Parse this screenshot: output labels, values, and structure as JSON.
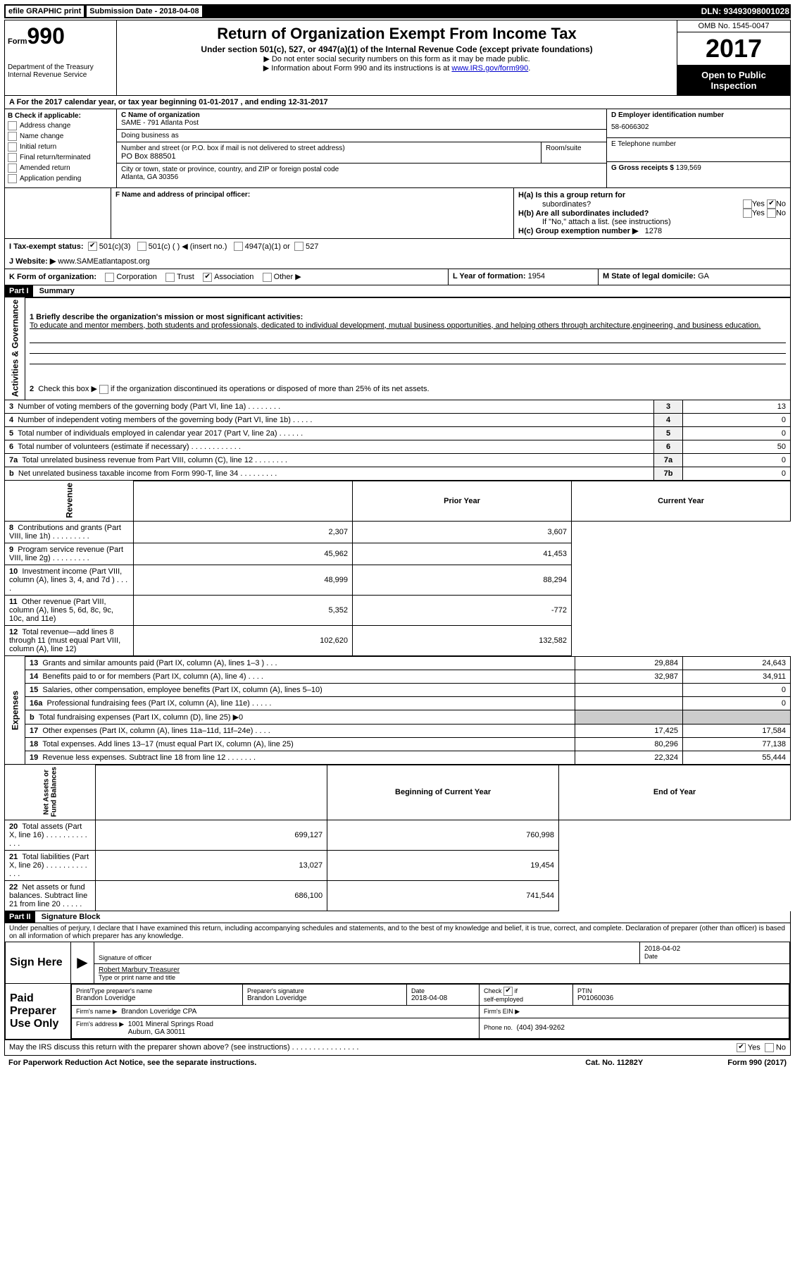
{
  "top": {
    "efile": "efile GRAPHIC print",
    "sub": "Submission Date - 2018-04-08",
    "dln": "DLN: 93493098001028"
  },
  "header": {
    "form": "Form",
    "num": "990",
    "dept": "Department of the Treasury\nInternal Revenue Service",
    "title": "Return of Organization Exempt From Income Tax",
    "subtitle": "Under section 501(c), 527, or 4947(a)(1) of the Internal Revenue Code (except private foundations)",
    "note1": "▶ Do not enter social security numbers on this form as it may be made public.",
    "note2_pre": "▶ Information about Form 990 and its instructions is at ",
    "note2_link": "www.IRS.gov/form990",
    "omb": "OMB No. 1545-0047",
    "year": "2017",
    "open": "Open to Public\nInspection"
  },
  "a": "A  For the 2017 calendar year, or tax year beginning 01-01-2017   , and ending 12-31-2017",
  "b": {
    "label": "B Check if applicable:",
    "items": [
      "Address change",
      "Name change",
      "Initial return",
      "Final return/terminated",
      "Amended return",
      "Application pending"
    ]
  },
  "c": {
    "name_label": "C Name of organization",
    "name": "SAME - 791 Atlanta Post",
    "dba_label": "Doing business as",
    "addr_label": "Number and street (or P.O. box if mail is not delivered to street address)",
    "room_label": "Room/suite",
    "addr": "PO Box 888501",
    "city_label": "City or town, state or province, country, and ZIP or foreign postal code",
    "city": "Atlanta, GA  30356"
  },
  "d": {
    "ein_label": "D Employer identification number",
    "ein": "58-6066302",
    "phone_label": "E Telephone number",
    "gross_label": "G Gross receipts $",
    "gross": "139,569"
  },
  "f": {
    "label": "F Name and address of principal officer:"
  },
  "h": {
    "a_label": "H(a)  Is this a group return for",
    "a_sub": "subordinates?",
    "b_label": "H(b)  Are all subordinates included?",
    "b_note": "If \"No,\" attach a list. (see instructions)",
    "c_label": "H(c)  Group exemption number ▶",
    "c_val": "1278"
  },
  "i": {
    "label": "I  Tax-exempt status:",
    "opts": [
      "501(c)(3)",
      "501(c) (  ) ◀ (insert no.)",
      "4947(a)(1) or",
      "527"
    ]
  },
  "j": {
    "label": "J  Website: ▶",
    "val": "www.SAMEatlantapost.org"
  },
  "k": {
    "label": "K Form of organization:",
    "opts": [
      "Corporation",
      "Trust",
      "Association",
      "Other ▶"
    ],
    "l_label": "L Year of formation:",
    "l_val": "1954",
    "m_label": "M State of legal domicile:",
    "m_val": "GA"
  },
  "part1": {
    "header": "Part I",
    "title": "Summary",
    "q1": "1 Briefly describe the organization's mission or most significant activities:",
    "mission": "To educate and mentor members, both students and professionals, dedicated to individual development, mutual business opportunities, and helping others through architecture,engineering, and business education.",
    "q2": "2   Check this box ▶       if the organization discontinued its operations or disposed of more than 25% of its net assets."
  },
  "governance": {
    "label": "Activities & Governance",
    "rows": [
      {
        "n": "3",
        "desc": "Number of voting members of the governing body (Part VI, line 1a)  .   .   .   .   .   .   .   .",
        "box": "3",
        "val": "13"
      },
      {
        "n": "4",
        "desc": "Number of independent voting members of the governing body (Part VI, line 1b)  .   .   .   .   .",
        "box": "4",
        "val": "0"
      },
      {
        "n": "5",
        "desc": "Total number of individuals employed in calendar year 2017 (Part V, line 2a)  .   .   .   .   .   .",
        "box": "5",
        "val": "0"
      },
      {
        "n": "6",
        "desc": "Total number of volunteers (estimate if necessary)  .   .   .   .   .   .   .   .   .   .   .   .",
        "box": "6",
        "val": "50"
      },
      {
        "n": "7a",
        "desc": "Total unrelated business revenue from Part VIII, column (C), line 12  .   .   .   .   .   .   .   .",
        "box": "7a",
        "val": "0"
      },
      {
        "n": "b",
        "desc": "Net unrelated business taxable income from Form 990-T, line 34  .   .   .   .   .   .   .   .   .",
        "box": "7b",
        "val": "0"
      }
    ]
  },
  "two_col_header": {
    "prior": "Prior Year",
    "current": "Current Year"
  },
  "revenue": {
    "label": "Revenue",
    "rows": [
      {
        "n": "8",
        "desc": "Contributions and grants (Part VIII, line 1h)  .   .   .   .   .   .   .   .   .",
        "p": "2,307",
        "c": "3,607"
      },
      {
        "n": "9",
        "desc": "Program service revenue (Part VIII, line 2g)  .   .   .   .   .   .   .   .   .",
        "p": "45,962",
        "c": "41,453"
      },
      {
        "n": "10",
        "desc": "Investment income (Part VIII, column (A), lines 3, 4, and 7d )  .   .   .   .",
        "p": "48,999",
        "c": "88,294"
      },
      {
        "n": "11",
        "desc": "Other revenue (Part VIII, column (A), lines 5, 6d, 8c, 9c, 10c, and 11e)",
        "p": "5,352",
        "c": "-772"
      },
      {
        "n": "12",
        "desc": "Total revenue—add lines 8 through 11 (must equal Part VIII, column (A), line 12)",
        "p": "102,620",
        "c": "132,582"
      }
    ]
  },
  "expenses": {
    "label": "Expenses",
    "rows": [
      {
        "n": "13",
        "desc": "Grants and similar amounts paid (Part IX, column (A), lines 1–3 )  .   .   .",
        "p": "29,884",
        "c": "24,643"
      },
      {
        "n": "14",
        "desc": "Benefits paid to or for members (Part IX, column (A), line 4)  .   .   .   .",
        "p": "32,987",
        "c": "34,911"
      },
      {
        "n": "15",
        "desc": "Salaries, other compensation, employee benefits (Part IX, column (A), lines 5–10)",
        "p": "",
        "c": "0"
      },
      {
        "n": "16a",
        "desc": "Professional fundraising fees (Part IX, column (A), line 11e)  .   .   .   .   .",
        "p": "",
        "c": "0"
      },
      {
        "n": "b",
        "desc": "Total fundraising expenses (Part IX, column (D), line 25) ▶0",
        "p": "SHADED",
        "c": "SHADED"
      },
      {
        "n": "17",
        "desc": "Other expenses (Part IX, column (A), lines 11a–11d, 11f–24e)  .   .   .   .",
        "p": "17,425",
        "c": "17,584"
      },
      {
        "n": "18",
        "desc": "Total expenses. Add lines 13–17 (must equal Part IX, column (A), line 25)",
        "p": "80,296",
        "c": "77,138"
      },
      {
        "n": "19",
        "desc": "Revenue less expenses. Subtract line 18 from line 12  .   .   .   .   .   .   .",
        "p": "22,324",
        "c": "55,444"
      }
    ]
  },
  "net_header": {
    "prior": "Beginning of Current Year",
    "current": "End of Year"
  },
  "netassets": {
    "label": "Net Assets or\nFund Balances",
    "rows": [
      {
        "n": "20",
        "desc": "Total assets (Part X, line 16)  .   .   .   .   .   .   .   .   .   .   .   .   .",
        "p": "699,127",
        "c": "760,998"
      },
      {
        "n": "21",
        "desc": "Total liabilities (Part X, line 26)  .   .   .   .   .   .   .   .   .   .   .   .   .",
        "p": "13,027",
        "c": "19,454"
      },
      {
        "n": "22",
        "desc": "Net assets or fund balances. Subtract line 21 from line 20  .   .   .   .   .",
        "p": "686,100",
        "c": "741,544"
      }
    ]
  },
  "part2": {
    "header": "Part II",
    "title": "Signature Block",
    "decl": "Under penalties of perjury, I declare that I have examined this return, including accompanying schedules and statements, and to the best of my knowledge and belief, it is true, correct, and complete. Declaration of preparer (other than officer) is based on all information of which preparer has any knowledge."
  },
  "sign": {
    "here": "Sign Here",
    "sig_officer": "Signature of officer",
    "date": "Date",
    "date_val": "2018-04-02",
    "name": "Robert Marbury Treasurer",
    "name_label": "Type or print name and title"
  },
  "preparer": {
    "label": "Paid Preparer Use Only",
    "name_label": "Print/Type preparer's name",
    "name": "Brandon Loveridge",
    "sig_label": "Preparer's signature",
    "sig": "Brandon Loveridge",
    "date_label": "Date",
    "date": "2018-04-08",
    "check_label": "Check        if self-employed",
    "ptin_label": "PTIN",
    "ptin": "P01060036",
    "firm_label": "Firm's name    ▶",
    "firm": "Brandon Loveridge CPA",
    "ein_label": "Firm's EIN ▶",
    "addr_label": "Firm's address ▶",
    "addr": "1001 Mineral Springs Road\nAuburn, GA  30011",
    "phone_label": "Phone no.",
    "phone": "(404) 394-9262"
  },
  "discuss": "May the IRS discuss this return with the preparer shown above? (see instructions)  .   .   .   .   .   .   .   .   .   .   .   .   .   .   .   .",
  "footer": {
    "left": "For Paperwork Reduction Act Notice, see the separate instructions.",
    "mid": "Cat. No. 11282Y",
    "right": "Form 990 (2017)"
  }
}
